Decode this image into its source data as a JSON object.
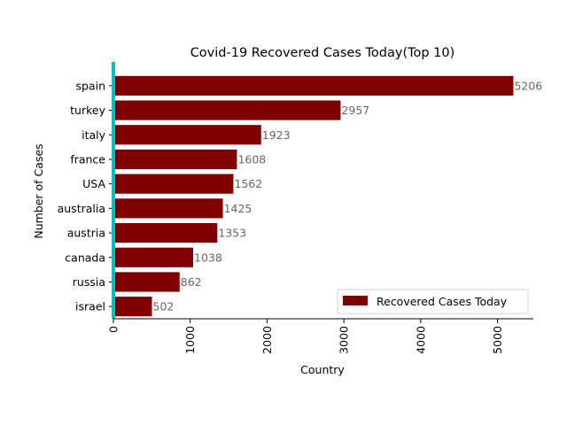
{
  "chart_data": {
    "type": "bar",
    "orientation": "horizontal",
    "title": "Covid-19 Recovered Cases Today(Top 10)",
    "xlabel": "Country",
    "ylabel": "Number of Cases",
    "categories": [
      "spain",
      "turkey",
      "italy",
      "france",
      "USA",
      "australia",
      "austria",
      "canada",
      "russia",
      "israel"
    ],
    "series": [
      {
        "name": "Recovered Cases Today",
        "values": [
          5206,
          2957,
          1923,
          1608,
          1562,
          1425,
          1353,
          1038,
          862,
          502
        ],
        "color": "#800000"
      }
    ],
    "xlim": [
      0,
      5466
    ],
    "xticks": [
      0,
      1000,
      2000,
      3000,
      4000,
      5000
    ],
    "xtick_rotation": 90,
    "grid": false,
    "legend": "lower-right",
    "left_spine_color": "#00c0c0"
  }
}
